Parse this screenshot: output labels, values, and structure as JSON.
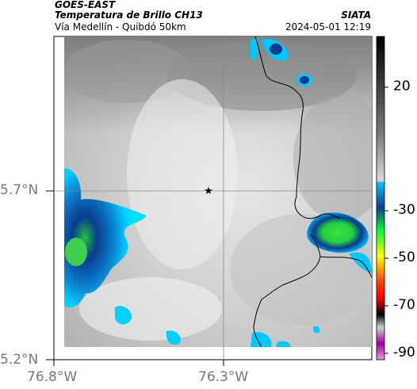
{
  "header": {
    "title": "GOES-EAST",
    "subtitle": "Temperatura de Brillo CH13",
    "location": "Vía Medellín - Quibdó 50km",
    "organization": "SIATA",
    "datetime": "2024-05-01 12:19"
  },
  "axes": {
    "lat_labels": [
      "5.7°N",
      "5.2°N"
    ],
    "lon_labels": [
      "76.8°W",
      "76.3°W"
    ]
  },
  "colorbar": {
    "labels": [
      "20",
      "-30",
      "-50",
      "-70",
      "-90"
    ],
    "stops": [
      "#000000",
      "#6a6a6a",
      "#dcdcdc",
      "#00c8ff",
      "#0a3c8c",
      "#00ff30",
      "#ffff00",
      "#ff4000",
      "#ff0000",
      "#000000",
      "#c864c8"
    ]
  },
  "map": {
    "marker": "star-icon",
    "colors": {
      "cloud_cold": "#0a3c8c",
      "cloud_cyan": "#00d0ff",
      "convective_core": "#20e040",
      "background_gray": "#d0d0d0"
    }
  }
}
